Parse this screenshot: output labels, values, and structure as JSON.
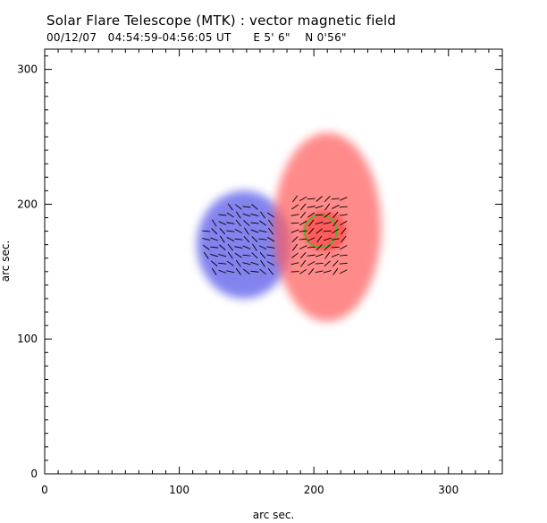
{
  "header": {
    "title": "Solar Flare Telescope (MTK) : vector magnetic field",
    "subtitle": "00/12/07   04:54:59-04:56:05 UT      E 5' 6\"    N 0'56\""
  },
  "chart_data": {
    "type": "heatmap",
    "title": "Solar Flare Telescope (MTK) : vector magnetic field",
    "subtitle": "00/12/07   04:54:59-04:56:05 UT      E 5' 6\"    N 0'56\"",
    "xlabel": "arc sec.",
    "ylabel": "arc sec.",
    "xlim": [
      0,
      340
    ],
    "ylim": [
      0,
      315
    ],
    "xticks": [
      0,
      100,
      200,
      300
    ],
    "yticks": [
      0,
      100,
      200,
      300
    ],
    "grid": false,
    "colors": {
      "positive": "#ff5a5a",
      "negative": "#4f4fe8",
      "contour": "#44bb22",
      "vectors": "#000000"
    },
    "regions": [
      {
        "name": "negative polarity",
        "polarity": "negative",
        "center": [
          148,
          170
        ],
        "extent": [
          [
            115,
            185
          ],
          [
            130,
            210
          ]
        ]
      },
      {
        "name": "positive polarity",
        "polarity": "positive",
        "center": [
          210,
          183
        ],
        "extent": [
          [
            180,
            260
          ],
          [
            110,
            250
          ]
        ]
      },
      {
        "name": "positive core",
        "polarity": "positive",
        "center": [
          208,
          180
        ],
        "extent": [
          [
            190,
            222
          ],
          [
            165,
            195
          ]
        ]
      }
    ],
    "contours": [
      {
        "color": "#44bb22",
        "center": [
          205,
          180
        ],
        "radius": 12
      }
    ],
    "vector_field": {
      "x_range": [
        120,
        225
      ],
      "y_range": [
        150,
        205
      ],
      "spacing": 6
    }
  }
}
